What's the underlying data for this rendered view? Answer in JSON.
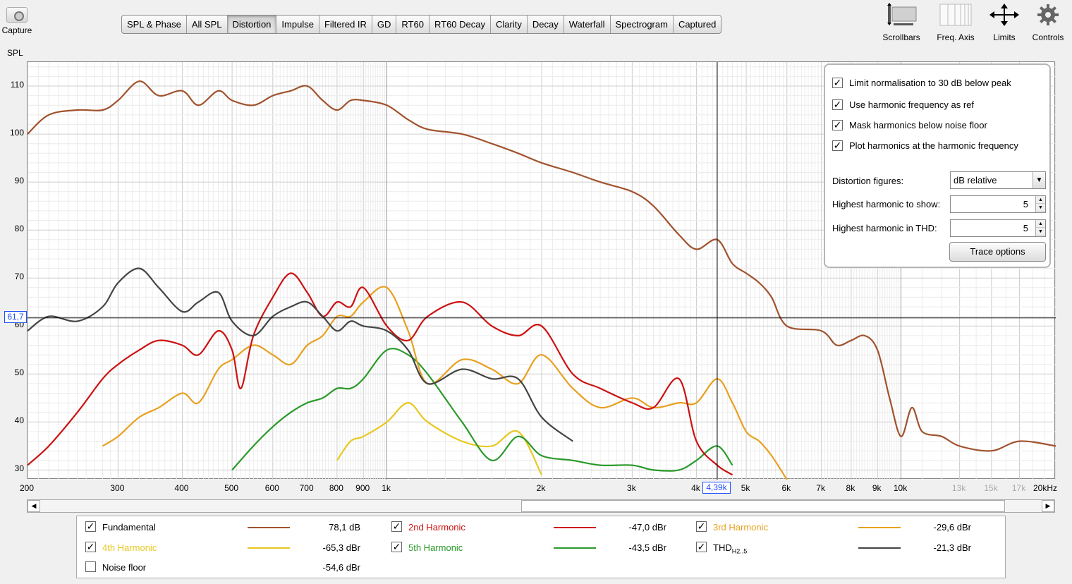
{
  "toolbar": {
    "capture_label": "Capture",
    "spl_label": "SPL",
    "tabs": [
      {
        "label": "SPL & Phase",
        "active": false
      },
      {
        "label": "All SPL",
        "active": false
      },
      {
        "label": "Distortion",
        "active": true
      },
      {
        "label": "Impulse",
        "active": false
      },
      {
        "label": "Filtered IR",
        "active": false
      },
      {
        "label": "GD",
        "active": false
      },
      {
        "label": "RT60",
        "active": false
      },
      {
        "label": "RT60 Decay",
        "active": false
      },
      {
        "label": "Clarity",
        "active": false
      },
      {
        "label": "Decay",
        "active": false
      },
      {
        "label": "Waterfall",
        "active": false
      },
      {
        "label": "Spectrogram",
        "active": false
      },
      {
        "label": "Captured",
        "active": false
      }
    ],
    "right_tools": [
      {
        "label": "Scrollbars",
        "icon": "scrollbars-icon"
      },
      {
        "label": "Freq. Axis",
        "icon": "freq-axis-icon"
      },
      {
        "label": "Limits",
        "icon": "limits-icon"
      },
      {
        "label": "Controls",
        "icon": "gear-icon"
      }
    ]
  },
  "graph": {
    "y_ticks": [
      "110",
      "100",
      "90",
      "80",
      "70",
      "60",
      "50",
      "40",
      "30"
    ],
    "x_ticks": [
      {
        "label": "200",
        "freq": 200
      },
      {
        "label": "300",
        "freq": 300
      },
      {
        "label": "400",
        "freq": 400
      },
      {
        "label": "500",
        "freq": 500
      },
      {
        "label": "600",
        "freq": 600
      },
      {
        "label": "700",
        "freq": 700
      },
      {
        "label": "800",
        "freq": 800
      },
      {
        "label": "900",
        "freq": 900
      },
      {
        "label": "1k",
        "freq": 1000
      },
      {
        "label": "2k",
        "freq": 2000
      },
      {
        "label": "3k",
        "freq": 3000
      },
      {
        "label": "4k",
        "freq": 4000
      },
      {
        "label": "5k",
        "freq": 5000
      },
      {
        "label": "6k",
        "freq": 6000
      },
      {
        "label": "7k",
        "freq": 7000
      },
      {
        "label": "8k",
        "freq": 8000
      },
      {
        "label": "9k",
        "freq": 9000
      },
      {
        "label": "10k",
        "freq": 10000
      },
      {
        "label": "13k",
        "freq": 13000,
        "dim": true
      },
      {
        "label": "15k",
        "freq": 15000,
        "dim": true
      },
      {
        "label": "17k",
        "freq": 17000,
        "dim": true
      },
      {
        "label": "20kHz",
        "freq": 20000
      }
    ],
    "cursor_y_value": "61,7",
    "cursor_x_value": "4,39k"
  },
  "chart_data": {
    "type": "line",
    "xlabel": "",
    "ylabel": "SPL",
    "x_scale": "log",
    "xlim": [
      200,
      20000
    ],
    "ylim": [
      28,
      115
    ],
    "grid": true,
    "cursor": {
      "x": 4390,
      "y": 61.7
    },
    "series": [
      {
        "name": "Fundamental",
        "color": "#a0522d",
        "x": [
          200,
          220,
          250,
          280,
          300,
          330,
          360,
          400,
          430,
          470,
          500,
          550,
          600,
          650,
          700,
          750,
          800,
          850,
          900,
          1000,
          1100,
          1200,
          1400,
          1600,
          1800,
          2000,
          2300,
          2600,
          3000,
          3300,
          3700,
          4000,
          4390,
          4700,
          5000,
          5300,
          5600,
          6000,
          7000,
          7500,
          8000,
          8500,
          9000,
          9500,
          10000,
          10500,
          11000,
          12000,
          13000,
          15000,
          17000,
          20000
        ],
        "y": [
          100,
          104,
          105,
          105,
          107,
          111,
          108,
          109,
          106,
          109,
          107,
          106,
          108,
          109,
          110,
          107,
          105,
          107,
          107,
          106,
          103,
          101,
          100,
          98,
          96,
          94,
          92,
          90,
          88,
          85,
          79,
          76,
          78,
          73,
          71,
          69,
          66,
          60,
          59,
          56,
          57,
          58,
          55,
          45,
          37,
          43,
          38,
          37,
          35,
          34,
          36,
          35
        ]
      },
      {
        "name": "2nd Harmonic",
        "color": "#cc1111",
        "x": [
          200,
          220,
          250,
          280,
          300,
          330,
          360,
          400,
          430,
          470,
          500,
          520,
          550,
          600,
          650,
          700,
          750,
          800,
          850,
          900,
          1000,
          1100,
          1200,
          1400,
          1600,
          1800,
          2000,
          2300,
          2600,
          3000,
          3300,
          3700,
          4000,
          4390,
          4700
        ],
        "y": [
          31,
          35,
          42,
          49,
          52,
          55,
          57,
          56,
          54,
          59,
          55,
          47,
          58,
          66,
          71,
          67,
          62,
          65,
          64,
          68,
          60,
          57,
          62,
          65,
          60,
          58,
          60,
          50,
          47,
          44,
          43,
          49,
          36,
          31,
          29
        ]
      },
      {
        "name": "3rd Harmonic",
        "color": "#e8a020",
        "x": [
          280,
          300,
          330,
          360,
          400,
          430,
          470,
          500,
          550,
          600,
          650,
          700,
          750,
          800,
          850,
          900,
          1000,
          1100,
          1200,
          1400,
          1600,
          1800,
          2000,
          2300,
          2600,
          3000,
          3300,
          3700,
          4000,
          4390,
          4700,
          5000,
          5300,
          5600,
          6000
        ],
        "y": [
          35,
          37,
          41,
          43,
          46,
          44,
          51,
          53,
          56,
          54,
          52,
          56,
          58,
          62,
          62,
          65,
          68,
          59,
          48,
          53,
          51,
          48,
          54,
          47,
          43,
          45,
          43,
          44,
          44,
          49,
          44,
          38,
          36,
          33,
          28
        ]
      },
      {
        "name": "4th Harmonic",
        "color": "#e8c820",
        "x": [
          800,
          850,
          900,
          1000,
          1100,
          1200,
          1400,
          1600,
          1800,
          2000
        ],
        "y": [
          32,
          36,
          37,
          40,
          44,
          40,
          36,
          35,
          38,
          29
        ]
      },
      {
        "name": "5th Harmonic",
        "color": "#2a9a2a",
        "x": [
          500,
          550,
          600,
          650,
          700,
          750,
          800,
          850,
          900,
          1000,
          1100,
          1200,
          1400,
          1600,
          1800,
          2000,
          2300,
          2600,
          3000,
          3300,
          3700,
          4000,
          4390,
          4700
        ],
        "y": [
          30,
          35,
          39,
          42,
          44,
          45,
          47,
          47,
          49,
          55,
          54,
          50,
          40,
          32,
          37,
          33,
          32,
          31,
          31,
          30,
          30,
          32,
          35,
          31
        ]
      },
      {
        "name": "THDH2..5",
        "color": "#444444",
        "x": [
          200,
          220,
          250,
          280,
          300,
          330,
          360,
          400,
          430,
          470,
          500,
          550,
          600,
          650,
          700,
          750,
          800,
          850,
          900,
          1000,
          1100,
          1200,
          1400,
          1600,
          1800,
          2000,
          2300
        ],
        "y": [
          59,
          62,
          61,
          64,
          69,
          72,
          68,
          63,
          65,
          67,
          61,
          58,
          62,
          64,
          65,
          62,
          59,
          61,
          60,
          59,
          55,
          48,
          51,
          49,
          49,
          41,
          36
        ]
      }
    ]
  },
  "panel": {
    "options": [
      {
        "label": "Limit normalisation to 30 dB below peak",
        "checked": true
      },
      {
        "label": "Use harmonic frequency as ref",
        "checked": true
      },
      {
        "label": "Mask harmonics below noise floor",
        "checked": true
      },
      {
        "label": "Plot harmonics at the harmonic frequency",
        "checked": true
      }
    ],
    "distortion_figures_label": "Distortion figures:",
    "distortion_figures_value": "dB relative",
    "highest_show_label": "Highest harmonic to show:",
    "highest_show_value": "5",
    "highest_thd_label": "Highest harmonic in THD:",
    "highest_thd_value": "5",
    "trace_options_label": "Trace options"
  },
  "legend": {
    "items": [
      {
        "name": "Fundamental",
        "value": "78,1 dB",
        "color": "#a0522d",
        "name_color": "#000000",
        "checked": true
      },
      {
        "name": "2nd Harmonic",
        "value": "-47,0 dBr",
        "color": "#cc1111",
        "name_color": "#cc1111",
        "checked": true
      },
      {
        "name": "3rd Harmonic",
        "value": "-29,6 dBr",
        "color": "#e8a020",
        "name_color": "#e8a020",
        "checked": true
      },
      {
        "name": "4th Harmonic",
        "value": "-65,3 dBr",
        "color": "#e8c820",
        "name_color": "#e8c820",
        "checked": true
      },
      {
        "name": "5th Harmonic",
        "value": "-43,5 dBr",
        "color": "#2a9a2a",
        "name_color": "#2a9a2a",
        "checked": true
      },
      {
        "name": "THD",
        "sub": "H2..5",
        "value": "-21,3 dBr",
        "color": "#444444",
        "name_color": "#000000",
        "checked": true
      },
      {
        "name": "Noise floor",
        "value": "-54,6 dBr",
        "color": "",
        "name_color": "#000000",
        "checked": false
      }
    ]
  }
}
